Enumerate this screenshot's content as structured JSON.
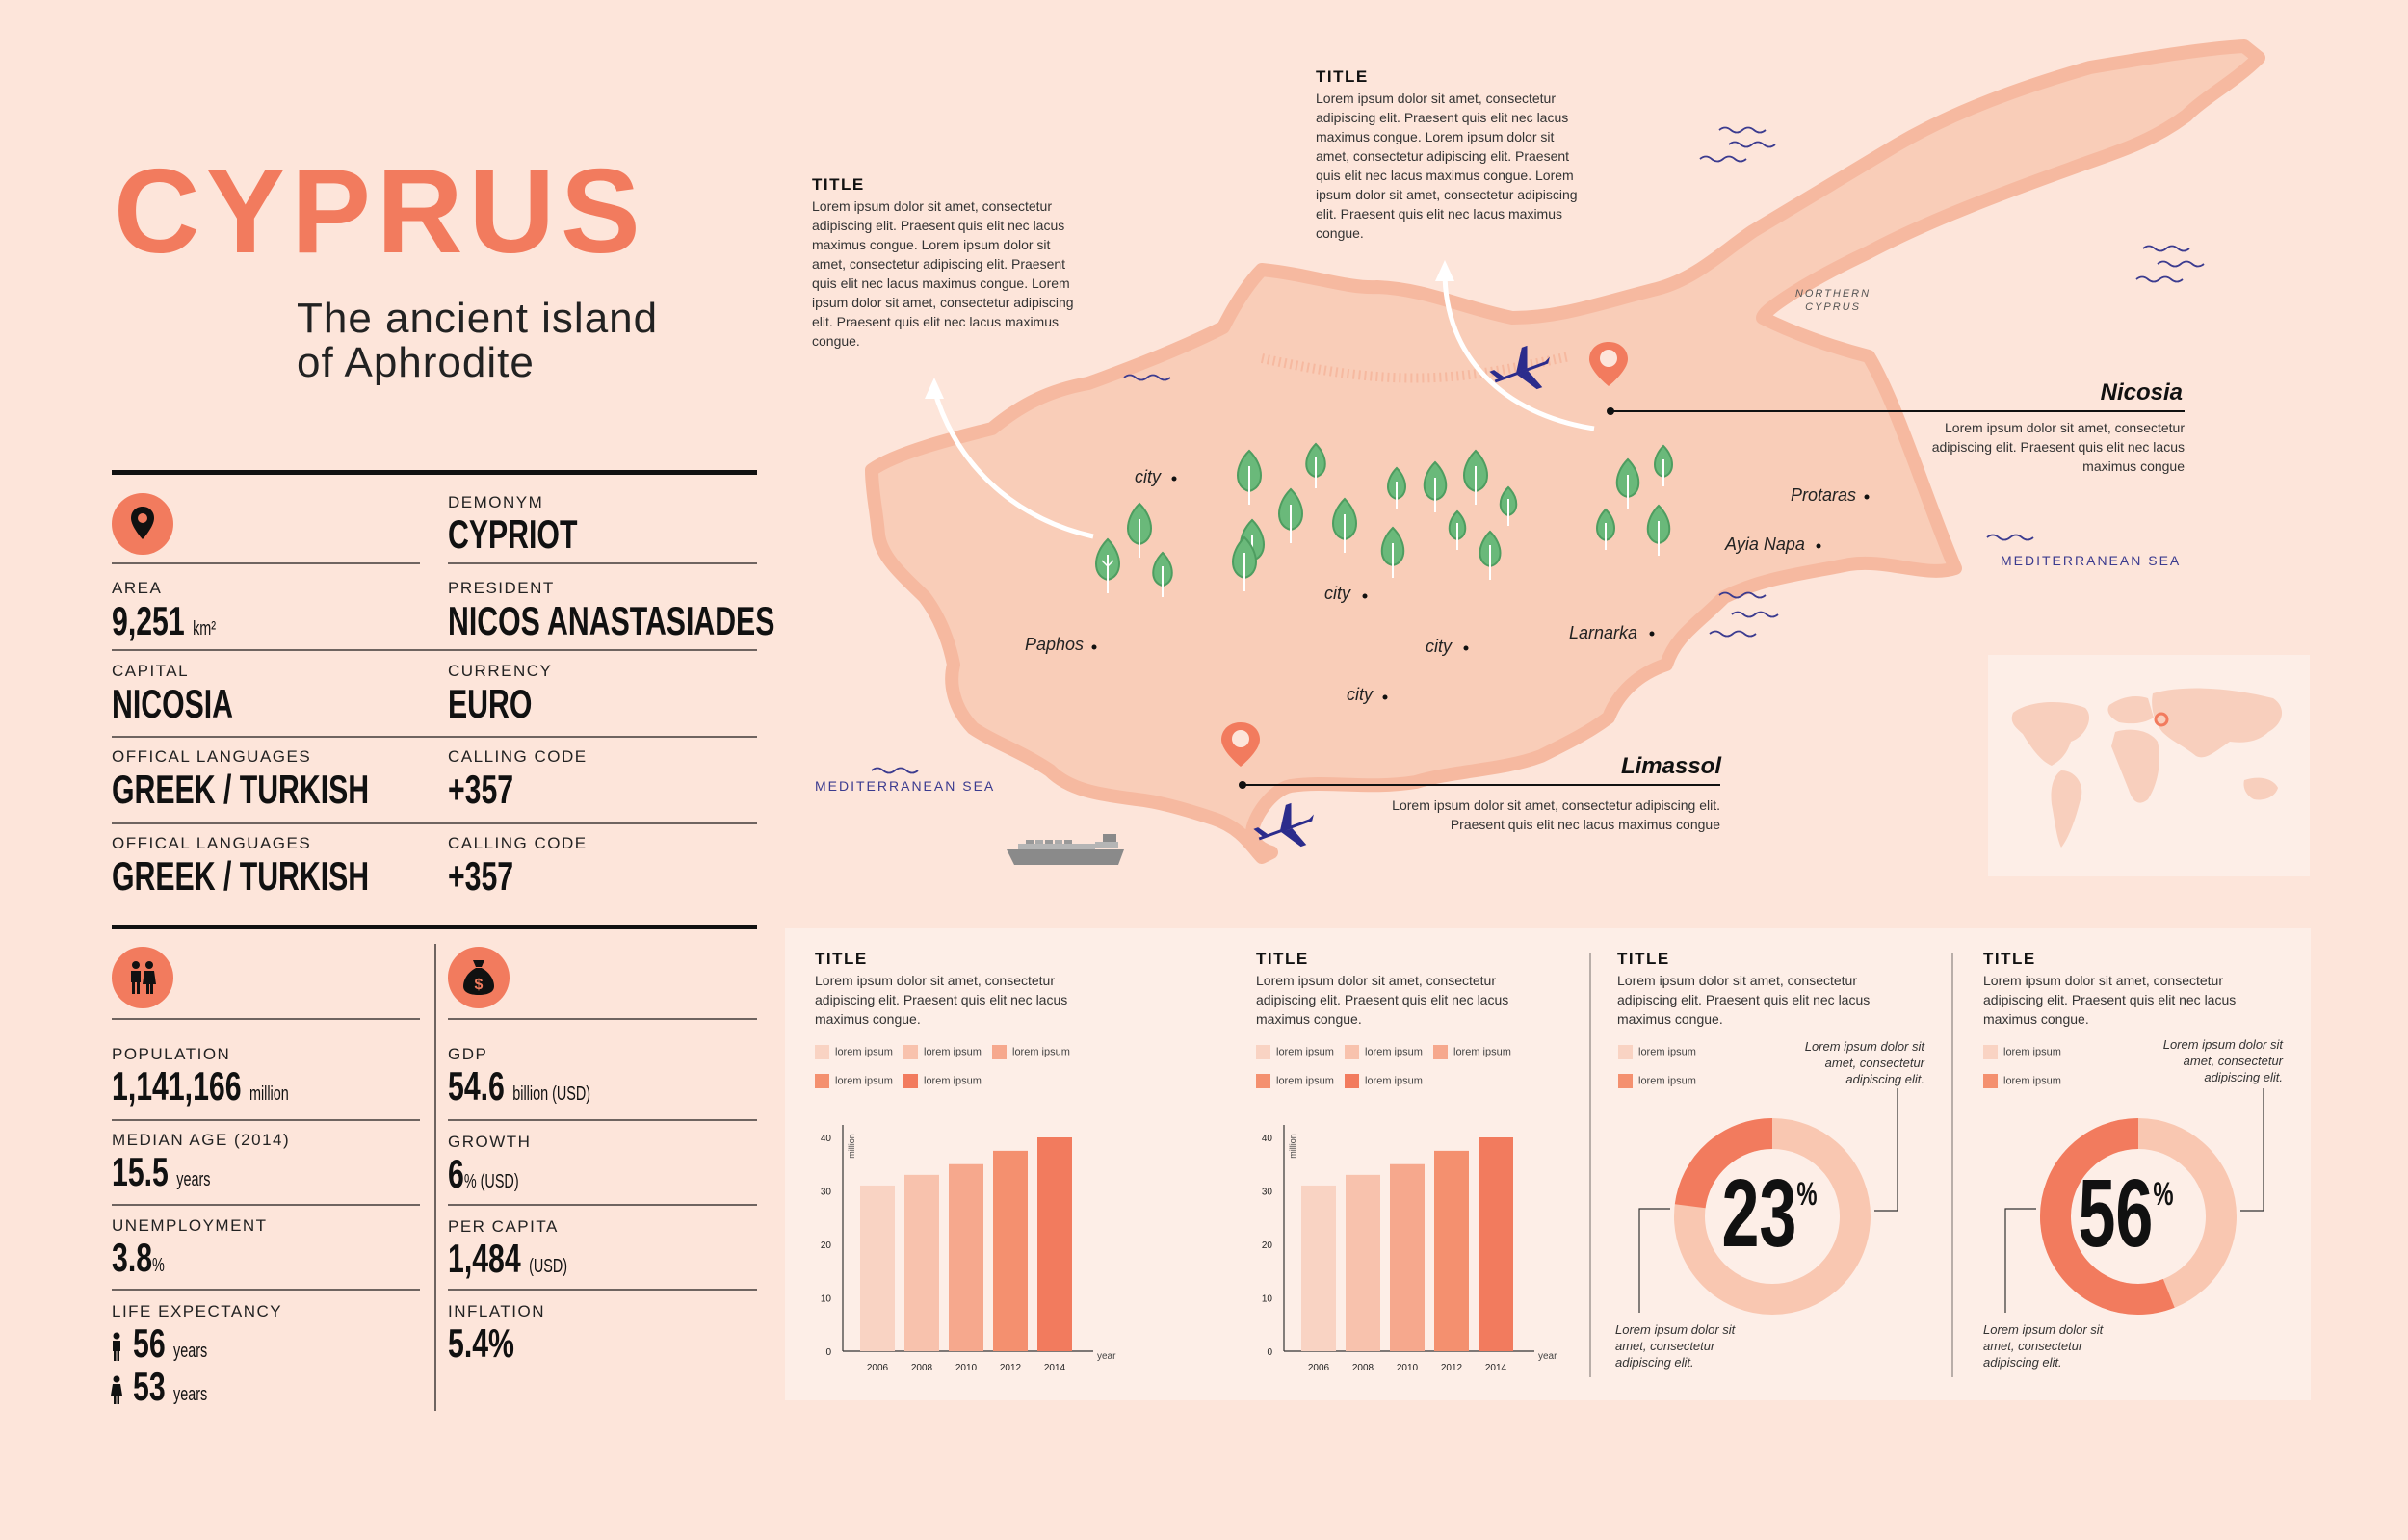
{
  "header": {
    "title": "CYPRUS",
    "subtitle_line1": "The ancient island",
    "subtitle_line2": "of Aphrodite"
  },
  "facts": {
    "demonym": {
      "label": "DEMONYM",
      "value": "CYPRIOT"
    },
    "area": {
      "label": "AREA",
      "value": "9,251",
      "unit": "km²"
    },
    "president": {
      "label": "PRESIDENT",
      "value": "NICOS ANASTASIADES"
    },
    "capital": {
      "label": "CAPITAL",
      "value": "NICOSIA"
    },
    "currency": {
      "label": "CURRENCY",
      "value": "EURO"
    },
    "languages": [
      {
        "label": "OFFICAL LANGUAGES",
        "value": "GREEK / TURKISH"
      },
      {
        "label": "OFFICAL LANGUAGES",
        "value": "GREEK / TURKISH"
      }
    ],
    "calling": [
      {
        "label": "CALLING CODE",
        "value": "+357"
      },
      {
        "label": "CALLING CODE",
        "value": "+357"
      }
    ]
  },
  "demographics": {
    "population": {
      "label": "POPULATION",
      "value": "1,141,166",
      "unit": "million"
    },
    "median_age": {
      "label": "MEDIAN AGE (2014)",
      "value": "15.5",
      "unit": "years"
    },
    "unemployment": {
      "label": "UNEMPLOYMENT",
      "value": "3.8",
      "unit": "%"
    },
    "life_expectancy": {
      "label": "LIFE EXPECTANCY",
      "male": "56",
      "female": "53",
      "unit": "years"
    }
  },
  "economy": {
    "gdp": {
      "label": "GDP",
      "value": "54.6",
      "unit": "billion (USD)"
    },
    "growth": {
      "label": "GROWTH",
      "value": "6",
      "unit": "% (USD)"
    },
    "per_capita": {
      "label": "PER CAPITA",
      "value": "1,484",
      "unit": "(USD)"
    },
    "inflation": {
      "label": "INFLATION",
      "value": "5.4%"
    }
  },
  "map": {
    "title_left": "TITLE",
    "text_left": "Lorem ipsum dolor sit amet, consectetur adipiscing elit. Praesent quis elit nec lacus maximus congue. Lorem ipsum dolor sit amet, consectetur adipiscing elit. Praesent quis elit nec lacus maximus congue. Lorem ipsum dolor sit amet, consectetur adipiscing elit. Praesent quis elit nec lacus maximus congue.",
    "title_top": "TITLE",
    "text_top": "Lorem ipsum dolor sit amet, consectetur adipiscing elit. Praesent quis elit nec lacus maximus congue. Lorem ipsum dolor sit amet, consectetur adipiscing elit. Praesent quis elit nec lacus maximus congue. Lorem ipsum dolor sit amet, consectetur adipiscing elit. Praesent quis elit nec lacus maximus congue.",
    "nicosia": {
      "name": "Nicosia",
      "text": "Lorem ipsum dolor sit amet, consectetur adipiscing elit. Praesent quis elit nec lacus maximus congue"
    },
    "limassol": {
      "name": "Limassol",
      "text": "Lorem ipsum dolor sit amet, consectetur adipiscing elit. Praesent quis elit nec lacus maximus congue"
    },
    "northern_cyprus": "NORTHERN CYPRUS",
    "seas": [
      "MEDITERRANEAN SEA",
      "MEDITERRANEAN SEA"
    ],
    "cities": {
      "city1": "city",
      "city2": "city",
      "city3": "city",
      "city4": "city",
      "paphos": "Paphos",
      "larnarka": "Larnarka",
      "ayia_napa": "Ayia Napa",
      "protaras": "Protaras"
    }
  },
  "bottom": {
    "chart_text": "Lorem ipsum dolor sit amet, consectetur adipiscing elit. Praesent quis elit nec lacus maximus congue.",
    "legend_label": "lorem ipsum",
    "note": "Lorem ipsum dolor sit amet, consectetur adipiscing elit.",
    "donut1_value": "23",
    "donut2_value": "56",
    "percent_sign": "%",
    "title": "TITLE"
  },
  "colors": {
    "accent": "#f27b5e",
    "map_land": "#f9cdb8",
    "map_border": "#f6b9a0",
    "tree": "#6ab97a",
    "plane": "#2b2c8c",
    "bar_colors": [
      "#f9d3c3",
      "#f8c2ad",
      "#f6a88d",
      "#f4906f",
      "#f27b5e"
    ]
  },
  "chart_data": [
    {
      "type": "bar",
      "title": "TITLE",
      "categories": [
        "2006",
        "2008",
        "2010",
        "2012",
        "2014"
      ],
      "values": [
        31,
        33,
        35,
        37.5,
        40
      ],
      "ylabel": "million",
      "xlabel": "year",
      "yticks": [
        "0",
        "10",
        "20",
        "30",
        "40"
      ],
      "ylim": [
        0,
        40
      ]
    },
    {
      "type": "bar",
      "title": "TITLE",
      "categories": [
        "2006",
        "2008",
        "2010",
        "2012",
        "2014"
      ],
      "values": [
        31,
        33,
        35,
        37.5,
        40
      ],
      "ylabel": "million",
      "xlabel": "year",
      "yticks": [
        "0",
        "10",
        "20",
        "30",
        "40"
      ],
      "ylim": [
        0,
        40
      ]
    },
    {
      "type": "pie",
      "title": "TITLE",
      "values": [
        23,
        77
      ]
    },
    {
      "type": "pie",
      "title": "TITLE",
      "values": [
        56,
        44
      ]
    }
  ]
}
